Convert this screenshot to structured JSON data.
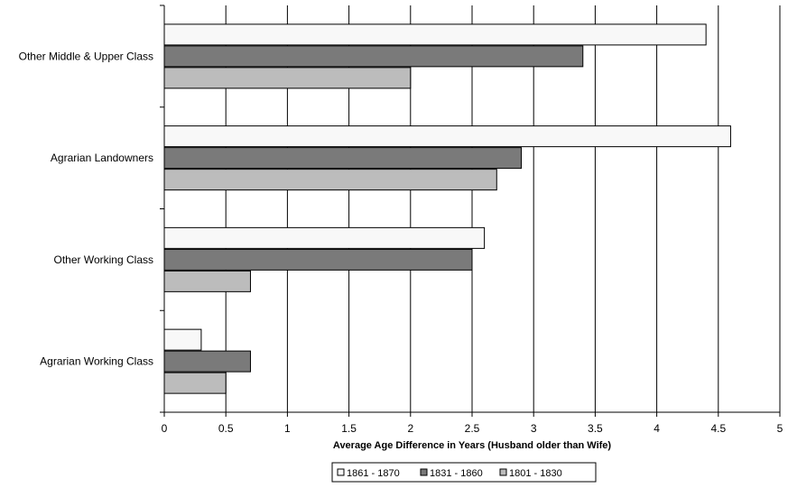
{
  "chart_data": {
    "type": "bar",
    "orientation": "horizontal",
    "title": "",
    "xlabel": "Average Age Difference in Years (Husband older than Wife)",
    "ylabel": "",
    "xlim": [
      0,
      5
    ],
    "x_ticks": [
      "0",
      "0.5",
      "1",
      "1.5",
      "2",
      "2.5",
      "3",
      "3.5",
      "4",
      "4.5",
      "5"
    ],
    "grid": true,
    "legend_position": "bottom",
    "categories": [
      "Other Middle & Upper Class",
      "Agrarian Landowners",
      "Other Working Class",
      "Agrarian Working Class"
    ],
    "series": [
      {
        "name": "1861 - 1870",
        "color": "#f8f8f8",
        "values": [
          4.4,
          4.6,
          2.6,
          0.3
        ]
      },
      {
        "name": "1831 - 1860",
        "color": "#7a7a7a",
        "values": [
          3.4,
          2.9,
          2.5,
          0.7
        ]
      },
      {
        "name": "1801 - 1830",
        "color": "#bcbcbc",
        "values": [
          2.0,
          2.7,
          0.7,
          0.5
        ]
      }
    ]
  }
}
